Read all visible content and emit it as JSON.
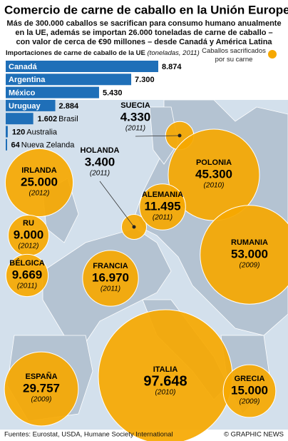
{
  "title": "Comercio de carne de caballo en la Unión Europea",
  "subtitle": [
    "Más de 300.000 caballos se sacrifican para consumo humano anualmente",
    "en la UE, además se importan 26.000 toneladas de carne de caballo –",
    "con valor de cerca de €90 millones – desde Canadá y América Latina"
  ],
  "chart_data": [
    {
      "type": "bar",
      "title": "Importaciones de carne de caballo de la UE",
      "subtitle": "(toneladas, 2011)",
      "orientation": "horizontal",
      "color": "#1f6fb8",
      "categories": [
        "Canadá",
        "Argentina",
        "México",
        "Uruguay",
        "Brasil",
        "Australia",
        "Nueva Zelanda"
      ],
      "values": [
        8874,
        7300,
        5430,
        2884,
        1602,
        120,
        64
      ],
      "value_labels": [
        "8.874",
        "7.300",
        "5.430",
        "2.884",
        "1.602",
        "120",
        "64"
      ]
    },
    {
      "type": "bubble",
      "title": "Caballos sacrificados por su carne",
      "color": "#f6a800",
      "categories": [
        "SUECIA",
        "HOLANDA",
        "IRLANDA",
        "POLONIA",
        "ALEMANIA",
        "RU",
        "RUMANIA",
        "BÉLGICA",
        "FRANCIA",
        "ITALIA",
        "ESPAÑA",
        "GRECIA"
      ],
      "values": [
        4330,
        3400,
        25000,
        45300,
        11495,
        9000,
        53000,
        9669,
        16970,
        97648,
        29757,
        15000
      ],
      "value_labels": [
        "4.330",
        "3.400",
        "25.000",
        "45.300",
        "11.495",
        "9.000",
        "53.000",
        "9.669",
        "16.970",
        "97.648",
        "29.757",
        "15.000"
      ],
      "years": [
        "(2011)",
        "(2011)",
        "(2012)",
        "(2010)",
        "(2011)",
        "(2012)",
        "(2009)",
        "(2011)",
        "(2011)",
        "(2010)",
        "(2009)",
        "(2009)"
      ]
    }
  ],
  "source": "Fuentes: Eurostat, USDA, Humane Society International",
  "credit": "© GRAPHIC NEWS"
}
